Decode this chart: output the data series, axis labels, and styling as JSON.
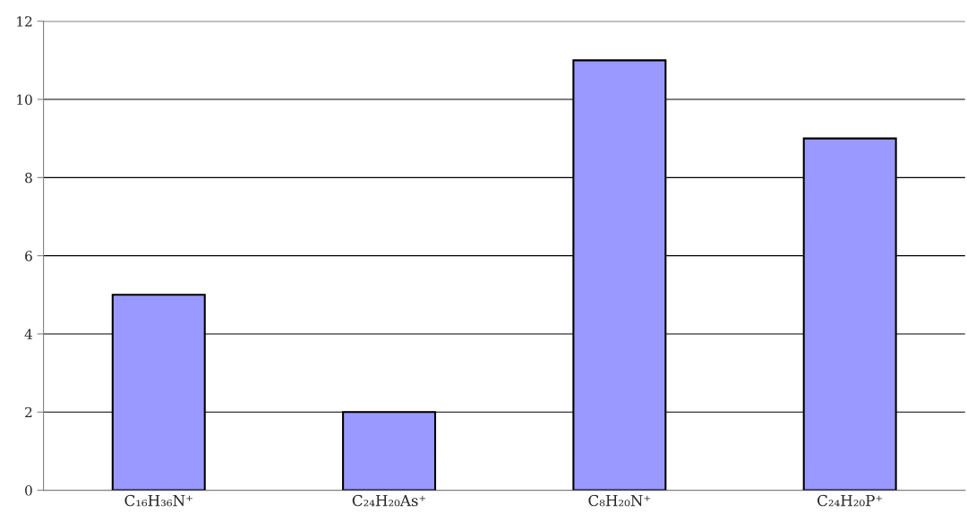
{
  "chart_data": {
    "type": "bar",
    "categories": [
      "C₁₆H₃₆N⁺",
      "C₂₄H₂₀As⁺",
      "C₈H₂₀N⁺",
      "C₂₄H₂₀P⁺"
    ],
    "values": [
      5,
      2,
      11,
      9
    ],
    "color": "#9999ff",
    "ylim": [
      0,
      12
    ],
    "yticks": [
      0,
      2,
      4,
      6,
      8,
      10,
      12
    ],
    "grid": "y",
    "legend": false
  }
}
